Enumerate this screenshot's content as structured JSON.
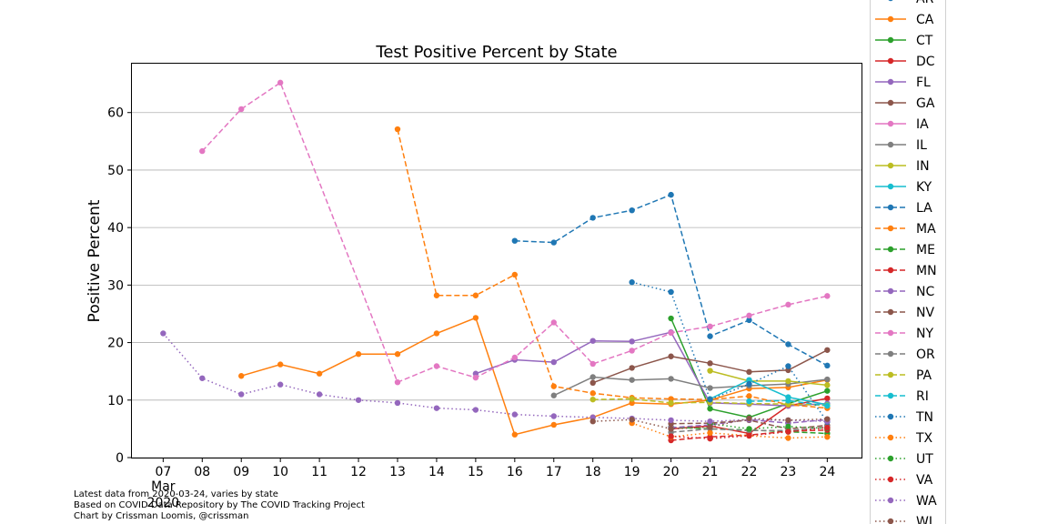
{
  "footer": {
    "line1": "Latest data from 2020-03-24, varies by state",
    "line2": "Based on COVID Data Repository by The COVID Tracking Project",
    "line3": "Chart by Crissman Loomis, @crissman"
  },
  "chart_data": {
    "type": "line",
    "title": "Test Positive Percent by State",
    "xlabel": "",
    "ylabel": "Positive Percent",
    "x_ticks": [
      "07",
      "08",
      "09",
      "10",
      "11",
      "12",
      "13",
      "14",
      "15",
      "16",
      "17",
      "18",
      "19",
      "20",
      "21",
      "22",
      "23",
      "24"
    ],
    "x_tick_days": [
      7,
      8,
      9,
      10,
      11,
      12,
      13,
      14,
      15,
      16,
      17,
      18,
      19,
      20,
      21,
      22,
      23,
      24
    ],
    "x_secondary_labels": [
      "Mar",
      "2020"
    ],
    "xlim": [
      6.2,
      24.9
    ],
    "ylim": [
      0,
      68.5
    ],
    "y_ticks": [
      0,
      10,
      20,
      30,
      40,
      50,
      60
    ],
    "grid": "horizontal",
    "legend_position": "outside-right",
    "series": [
      {
        "name": "AR",
        "color": "#1f77b4",
        "style": "solid",
        "x": [],
        "y": []
      },
      {
        "name": "CA",
        "color": "#ff7f0e",
        "style": "solid",
        "x": [
          9,
          10,
          11,
          12,
          13,
          14,
          15,
          16,
          17,
          18,
          19,
          20,
          21,
          22,
          23,
          24
        ],
        "y": [
          14.2,
          16.2,
          14.6,
          18.0,
          18.0,
          21.6,
          24.3,
          4.0,
          5.7,
          7.0,
          9.5,
          9.3,
          10.0,
          12.0,
          12.2,
          13.5
        ]
      },
      {
        "name": "CT",
        "color": "#2ca02c",
        "style": "solid",
        "x": [
          20,
          21,
          22,
          23,
          24
        ],
        "y": [
          24.2,
          8.5,
          7.0,
          9.4,
          11.6
        ]
      },
      {
        "name": "DC",
        "color": "#d62728",
        "style": "solid",
        "x": [
          20,
          21,
          22,
          23,
          24
        ],
        "y": [
          5.0,
          5.5,
          4.2,
          9.0,
          10.3
        ]
      },
      {
        "name": "FL",
        "color": "#9467bd",
        "style": "solid",
        "x": [
          15,
          16,
          17,
          18,
          19,
          20,
          21,
          22,
          23,
          24
        ],
        "y": [
          14.6,
          17.0,
          16.6,
          20.3,
          20.2,
          21.8,
          9.5,
          9.3,
          9.0,
          9.4
        ]
      },
      {
        "name": "GA",
        "color": "#8c564b",
        "style": "solid",
        "x": [
          18,
          19,
          20,
          21,
          22,
          23,
          24
        ],
        "y": [
          13.0,
          15.6,
          17.6,
          16.4,
          14.9,
          15.2,
          18.7
        ]
      },
      {
        "name": "IA",
        "color": "#e377c2",
        "style": "solid",
        "x": [],
        "y": []
      },
      {
        "name": "IL",
        "color": "#7f7f7f",
        "style": "solid",
        "x": [
          17,
          18,
          19,
          20,
          21,
          22,
          23,
          24
        ],
        "y": [
          10.8,
          14.0,
          13.5,
          13.7,
          12.1,
          12.5,
          12.8,
          13.6
        ]
      },
      {
        "name": "IN",
        "color": "#bcbd22",
        "style": "solid",
        "x": [
          21,
          22,
          23,
          24
        ],
        "y": [
          15.1,
          13.3,
          13.3,
          12.6
        ]
      },
      {
        "name": "KY",
        "color": "#17becf",
        "style": "solid",
        "x": [
          21,
          22,
          23,
          24
        ],
        "y": [
          10.2,
          13.5,
          10.5,
          9.2
        ]
      },
      {
        "name": "LA",
        "color": "#1f77b4",
        "style": "dashed",
        "x": [
          16,
          17,
          18,
          19,
          20,
          21,
          22,
          23,
          24
        ],
        "y": [
          37.7,
          37.4,
          41.7,
          43.0,
          45.7,
          21.1,
          23.9,
          19.7,
          16.0
        ]
      },
      {
        "name": "MA",
        "color": "#ff7f0e",
        "style": "dashed",
        "x": [
          13,
          14,
          15,
          16,
          17,
          18,
          19,
          20,
          21,
          22,
          23,
          24
        ],
        "y": [
          57.1,
          28.2,
          28.2,
          31.8,
          12.4,
          11.2,
          10.4,
          10.2,
          10.1,
          10.7,
          9.2,
          8.6
        ]
      },
      {
        "name": "ME",
        "color": "#2ca02c",
        "style": "dashed",
        "x": [
          20,
          21,
          22,
          23,
          24
        ],
        "y": [
          5.3,
          5.0,
          4.8,
          4.5,
          4.2
        ]
      },
      {
        "name": "MN",
        "color": "#d62728",
        "style": "dashed",
        "x": [
          20,
          21,
          22,
          23,
          24
        ],
        "y": [
          3.0,
          3.6,
          3.9,
          4.6,
          4.8
        ]
      },
      {
        "name": "NC",
        "color": "#9467bd",
        "style": "dashed",
        "x": [
          20,
          21,
          22,
          23,
          24
        ],
        "y": [
          5.2,
          5.7,
          6.6,
          6.0,
          6.6
        ]
      },
      {
        "name": "NV",
        "color": "#8c564b",
        "style": "dashed",
        "x": [
          20,
          21,
          22,
          23,
          24
        ],
        "y": [
          5.9,
          6.0,
          6.5,
          5.0,
          5.6
        ]
      },
      {
        "name": "NY",
        "color": "#e377c2",
        "style": "dashed",
        "x": [
          8,
          9,
          10,
          13,
          14,
          15,
          16,
          17,
          18,
          19,
          20,
          21,
          22,
          23,
          24
        ],
        "y": [
          53.3,
          60.6,
          65.2,
          13.1,
          15.9,
          13.9,
          17.4,
          23.5,
          16.3,
          18.6,
          21.7,
          22.8,
          24.7,
          26.6,
          28.1
        ]
      },
      {
        "name": "OR",
        "color": "#7f7f7f",
        "style": "dashed",
        "x": [
          20,
          21,
          22,
          23,
          24
        ],
        "y": [
          4.4,
          5.0,
          4.7,
          4.7,
          5.3
        ]
      },
      {
        "name": "PA",
        "color": "#bcbd22",
        "style": "dashed",
        "x": [
          18,
          19,
          20,
          21,
          22,
          23,
          24
        ],
        "y": [
          10.1,
          10.2,
          9.5,
          9.6,
          9.4,
          9.3,
          9.1
        ]
      },
      {
        "name": "RI",
        "color": "#17becf",
        "style": "dashed",
        "x": [
          22,
          23,
          24
        ],
        "y": [
          9.8,
          9.9,
          9.0
        ]
      },
      {
        "name": "TN",
        "color": "#1f77b4",
        "style": "dotted",
        "x": [
          19,
          20,
          21,
          22,
          23,
          24
        ],
        "y": [
          30.5,
          28.8,
          10.1,
          12.8,
          15.9,
          6.2
        ]
      },
      {
        "name": "TX",
        "color": "#ff7f0e",
        "style": "dotted",
        "x": [
          19,
          20,
          21,
          22,
          23,
          24
        ],
        "y": [
          6.0,
          3.6,
          4.3,
          3.8,
          3.4,
          3.6
        ]
      },
      {
        "name": "UT",
        "color": "#2ca02c",
        "style": "dotted",
        "x": [
          21,
          22,
          23,
          24
        ],
        "y": [
          5.9,
          5.0,
          5.4,
          5.1
        ]
      },
      {
        "name": "VA",
        "color": "#d62728",
        "style": "dotted",
        "x": [
          20,
          21,
          22,
          23,
          24
        ],
        "y": [
          3.7,
          3.3,
          3.8,
          4.5,
          5.2
        ]
      },
      {
        "name": "WA",
        "color": "#9467bd",
        "style": "dotted",
        "x": [
          7,
          8,
          9,
          10,
          11,
          12,
          13,
          14,
          15,
          16,
          17,
          18,
          19,
          20,
          21,
          22,
          23,
          24
        ],
        "y": [
          21.6,
          13.8,
          11.0,
          12.7,
          11.0,
          10.0,
          9.5,
          8.6,
          8.3,
          7.5,
          7.2,
          7.0,
          6.8,
          6.5,
          6.3,
          6.6,
          6.5,
          6.3
        ]
      },
      {
        "name": "WI",
        "color": "#8c564b",
        "style": "dotted",
        "x": [
          18,
          19,
          20,
          21,
          22,
          23,
          24
        ],
        "y": [
          6.3,
          6.6,
          5.0,
          5.3,
          6.8,
          6.5,
          6.7
        ]
      }
    ]
  }
}
